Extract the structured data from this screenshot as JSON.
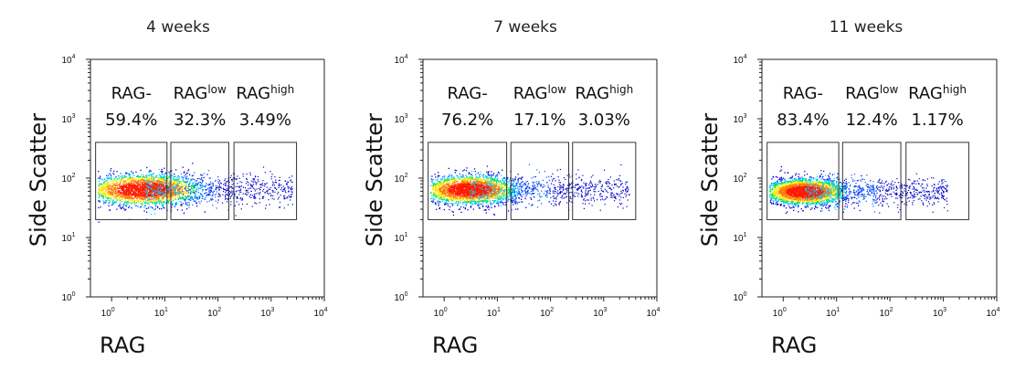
{
  "chart_data": [
    {
      "type": "scatter",
      "title": "4 weeks",
      "xlabel": "RAG",
      "ylabel": "Side Scatter",
      "xscale": "log",
      "yscale": "log",
      "xlim": [
        0.4,
        10000
      ],
      "ylim": [
        1,
        10000
      ],
      "xticks": [
        "10^0",
        "10^1",
        "10^2",
        "10^3",
        "10^4"
      ],
      "yticks": [
        "10^0",
        "10^1",
        "10^2",
        "10^3",
        "10^4"
      ],
      "gates": [
        {
          "name": "RAG-",
          "sup": "",
          "percent": "59.4%",
          "x_range": [
            0.5,
            11
          ],
          "y_range": [
            20,
            400
          ]
        },
        {
          "name": "RAG",
          "sup": "low",
          "percent": "32.3%",
          "x_range": [
            13,
            160
          ],
          "y_range": [
            20,
            400
          ]
        },
        {
          "name": "RAG",
          "sup": "high",
          "percent": "3.49%",
          "x_range": [
            200,
            3000
          ],
          "y_range": [
            20,
            400
          ]
        }
      ],
      "population": {
        "center_x": 4,
        "center_y": 65,
        "spread_x_decades": 0.55,
        "spread_y_decades": 0.13,
        "tail_to_x": 2500
      }
    },
    {
      "type": "scatter",
      "title": "7 weeks",
      "xlabel": "RAG",
      "ylabel": "Side Scatter",
      "xscale": "log",
      "yscale": "log",
      "xlim": [
        0.4,
        10000
      ],
      "ylim": [
        1,
        10000
      ],
      "xticks": [
        "10^0",
        "10^1",
        "10^2",
        "10^3",
        "10^4"
      ],
      "yticks": [
        "10^0",
        "10^1",
        "10^2",
        "10^3",
        "10^4"
      ],
      "gates": [
        {
          "name": "RAG-",
          "sup": "",
          "percent": "76.2%",
          "x_range": [
            0.5,
            15
          ],
          "y_range": [
            20,
            400
          ]
        },
        {
          "name": "RAG",
          "sup": "low",
          "percent": "17.1%",
          "x_range": [
            18,
            220
          ],
          "y_range": [
            20,
            400
          ]
        },
        {
          "name": "RAG",
          "sup": "high",
          "percent": "3.03%",
          "x_range": [
            260,
            4000
          ],
          "y_range": [
            20,
            400
          ]
        }
      ],
      "population": {
        "center_x": 3,
        "center_y": 65,
        "spread_x_decades": 0.45,
        "spread_y_decades": 0.12,
        "tail_to_x": 3000
      }
    },
    {
      "type": "scatter",
      "title": "11 weeks",
      "xlabel": "RAG",
      "ylabel": "Side Scatter",
      "xscale": "log",
      "yscale": "log",
      "xlim": [
        0.4,
        10000
      ],
      "ylim": [
        1,
        10000
      ],
      "xticks": [
        "10^0",
        "10^1",
        "10^2",
        "10^3",
        "10^4"
      ],
      "yticks": [
        "10^0",
        "10^1",
        "10^2",
        "10^3",
        "10^4"
      ],
      "gates": [
        {
          "name": "RAG-",
          "sup": "",
          "percent": "83.4%",
          "x_range": [
            0.5,
            11
          ],
          "y_range": [
            20,
            400
          ]
        },
        {
          "name": "RAG",
          "sup": "low",
          "percent": "12.4%",
          "x_range": [
            13,
            160
          ],
          "y_range": [
            20,
            400
          ]
        },
        {
          "name": "RAG",
          "sup": "high",
          "percent": "1.17%",
          "x_range": [
            200,
            3000
          ],
          "y_range": [
            20,
            400
          ]
        }
      ],
      "population": {
        "center_x": 2.5,
        "center_y": 60,
        "spread_x_decades": 0.38,
        "spread_y_decades": 0.11,
        "tail_to_x": 1200
      }
    }
  ],
  "colors": {
    "axis": "#222222",
    "gate": "#333333",
    "density": [
      "#0000cc",
      "#0055ff",
      "#00c8ff",
      "#00e060",
      "#ffe600",
      "#ff7a00",
      "#ff1a00"
    ]
  }
}
